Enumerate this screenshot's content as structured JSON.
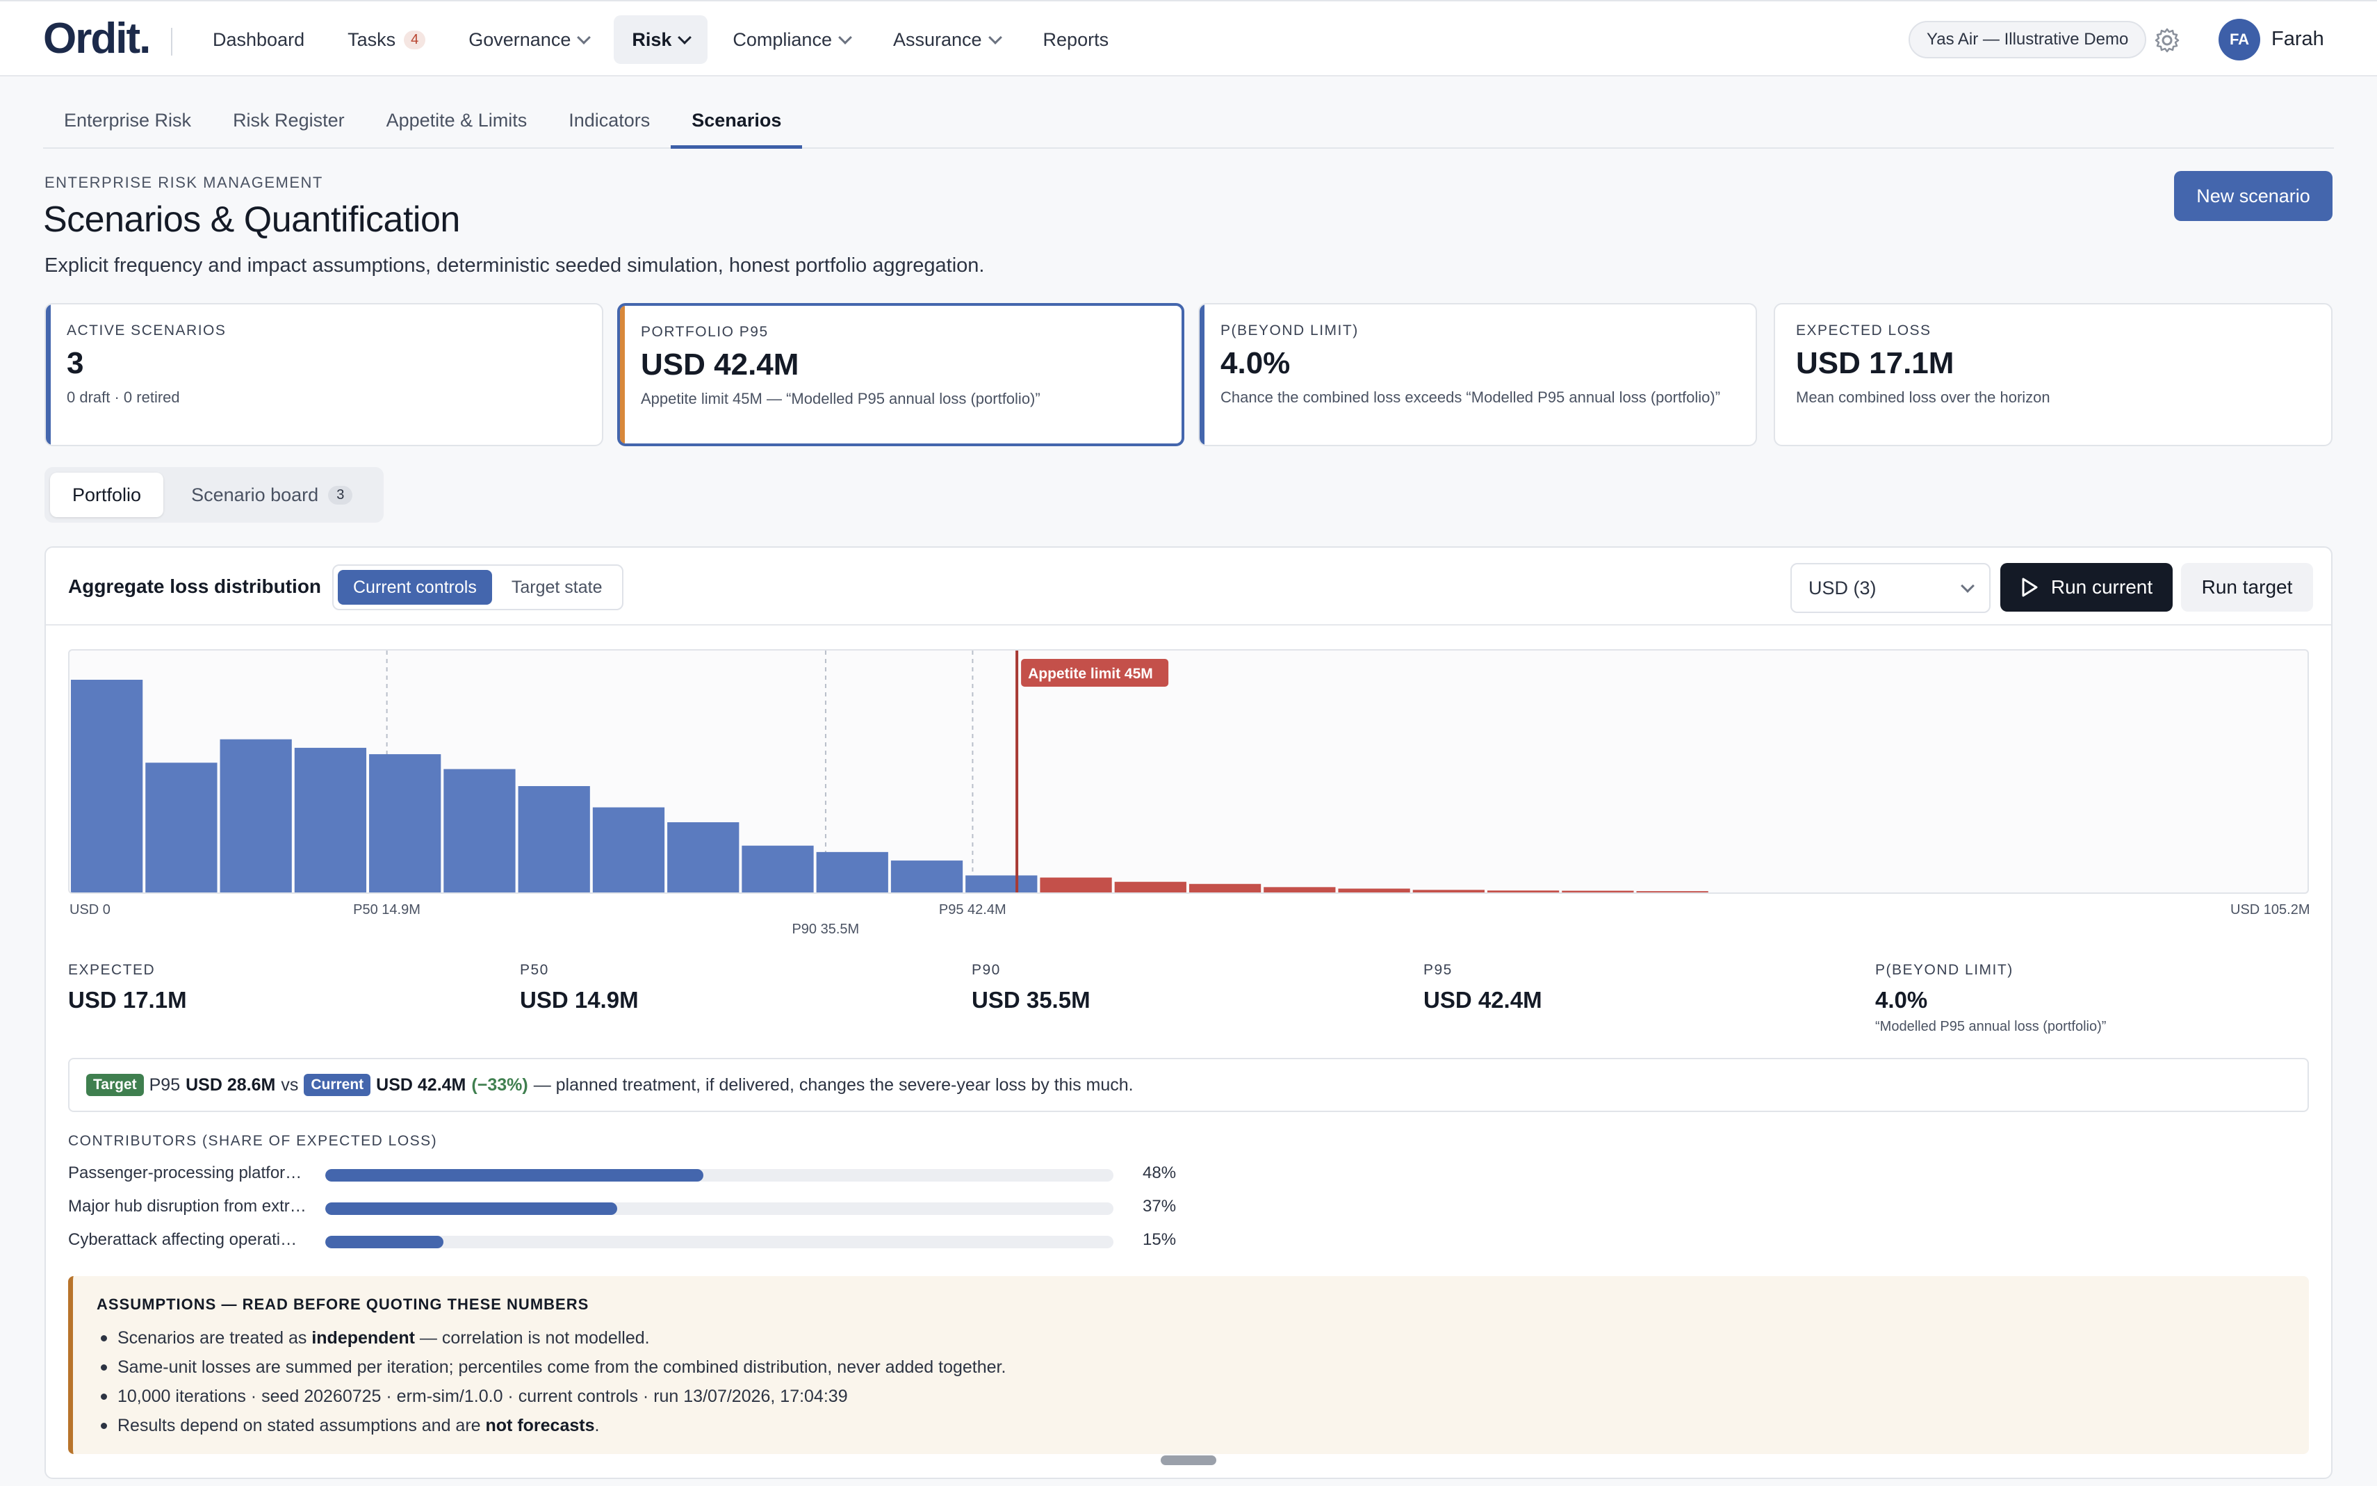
{
  "app": {
    "logo": "Ordit."
  },
  "nav": {
    "items": [
      {
        "label": "Dashboard"
      },
      {
        "label": "Tasks",
        "badge": "4"
      },
      {
        "label": "Governance"
      },
      {
        "label": "Risk"
      },
      {
        "label": "Compliance"
      },
      {
        "label": "Assurance"
      },
      {
        "label": "Reports"
      }
    ],
    "org": "Yas Air — Illustrative Demo",
    "avatar": "FA",
    "user": "Farah"
  },
  "subtabs": [
    "Enterprise Risk",
    "Risk Register",
    "Appetite & Limits",
    "Indicators",
    "Scenarios"
  ],
  "header": {
    "eyebrow": "ENTERPRISE RISK MANAGEMENT",
    "title": "Scenarios & Quantification",
    "subtitle": "Explicit frequency and impact assumptions, deterministic seeded simulation, honest portfolio aggregation.",
    "new_button": "New scenario"
  },
  "kpis": [
    {
      "label": "ACTIVE SCENARIOS",
      "value": "3",
      "note": "0 draft · 0 retired"
    },
    {
      "label": "PORTFOLIO P95",
      "value": "USD 42.4M",
      "note": "Appetite limit 45M — “Modelled P95 annual loss (portfolio)”"
    },
    {
      "label": "P(BEYOND LIMIT)",
      "value": "4.0%",
      "note": "Chance the combined loss exceeds “Modelled P95 annual loss (portfolio)”"
    },
    {
      "label": "EXPECTED LOSS",
      "value": "USD 17.1M",
      "note": "Mean combined loss over the horizon"
    }
  ],
  "view_tabs": {
    "portfolio": "Portfolio",
    "board": "Scenario board",
    "board_count": "3"
  },
  "panel": {
    "title": "Aggregate loss distribution",
    "toggle": [
      "Current controls",
      "Target state"
    ],
    "select": "USD (3)",
    "run_current": "Run current",
    "run_target": "Run target"
  },
  "colors": {
    "below_limit": "#5b7bbf",
    "beyond_limit": "#c4504a",
    "limit_line": "#a83a34",
    "accent": "#4466ad"
  },
  "chart_data": {
    "type": "bar",
    "x_min_label": "USD 0",
    "x_max_label": "USD 105.2M",
    "x_range": [
      0,
      105.2
    ],
    "bin_width": 3.5,
    "values": [
      100,
      61,
      72,
      68,
      65,
      58,
      50,
      40,
      33,
      22,
      19,
      15,
      8,
      7,
      5,
      4,
      2.5,
      1.8,
      1.2,
      0.9,
      0.8,
      0.6
    ],
    "limit": {
      "value": 45,
      "label": "Appetite limit 45M"
    },
    "markers": [
      {
        "value": 14.9,
        "label": "P50 14.9M"
      },
      {
        "value": 35.5,
        "label": "P90 35.5M"
      },
      {
        "value": 42.4,
        "label": "P95 42.4M"
      }
    ]
  },
  "stats": [
    {
      "label": "EXPECTED",
      "value": "USD 17.1M"
    },
    {
      "label": "P50",
      "value": "USD 14.9M"
    },
    {
      "label": "P90",
      "value": "USD 35.5M"
    },
    {
      "label": "P95",
      "value": "USD 42.4M"
    },
    {
      "label": "P(BEYOND LIMIT)",
      "value": "4.0%",
      "note": "“Modelled P95 annual loss (portfolio)”"
    }
  ],
  "compare": {
    "target_tag": "Target",
    "p95_word": "P95",
    "target_value": "USD 28.6M",
    "vs": "vs",
    "current_tag": "Current",
    "current_value": "USD 42.4M",
    "delta": "(−33%)",
    "text": "— planned treatment, if delivered, changes the severe-year loss by this much."
  },
  "contributors": {
    "title": "CONTRIBUTORS (SHARE OF EXPECTED LOSS)",
    "items": [
      {
        "name": "Passenger-processing platfor…",
        "pct": "48%",
        "share": 0.48
      },
      {
        "name": "Major hub disruption from extr…",
        "pct": "37%",
        "share": 0.37
      },
      {
        "name": "Cyberattack affecting operati…",
        "pct": "15%",
        "share": 0.15
      }
    ]
  },
  "assumptions": {
    "title": "ASSUMPTIONS — READ BEFORE QUOTING THESE NUMBERS",
    "l1_a": "Scenarios are treated as ",
    "l1_b": "independent",
    "l1_c": " — correlation is not modelled.",
    "l2": "Same-unit losses are summed per iteration; percentiles come from the combined distribution, never added together.",
    "l3": "10,000 iterations · seed 20260725 · erm-sim/1.0.0 · current controls · run 13/07/2026, 17:04:39",
    "l4_a": "Results depend on stated assumptions and are ",
    "l4_b": "not forecasts",
    "l4_c": "."
  }
}
